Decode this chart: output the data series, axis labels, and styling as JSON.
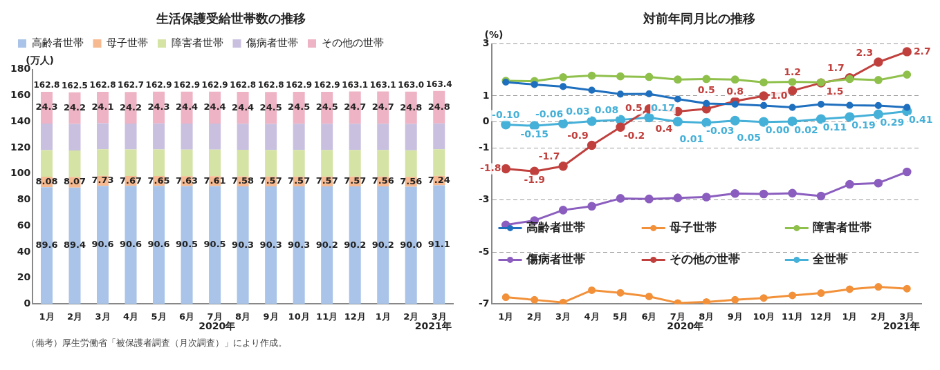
{
  "chart_data": [
    {
      "type": "bar",
      "title": "生活保護受給世帯数の推移",
      "ylabel": "(万人)",
      "categories": [
        "1月",
        "2月",
        "3月",
        "4月",
        "5月",
        "6月",
        "7月",
        "8月",
        "9月",
        "10月",
        "11月",
        "12月",
        "1月",
        "2月",
        "3月"
      ],
      "stacked": true,
      "ylim": [
        0,
        180
      ],
      "yticks": [
        0,
        20,
        40,
        60,
        80,
        100,
        120,
        140,
        160,
        180
      ],
      "grid": false,
      "legend": "top",
      "series": [
        {
          "name": "高齢者世帯",
          "color": "#a9c4e8",
          "values": [
            89.6,
            89.4,
            90.6,
            90.6,
            90.6,
            90.5,
            90.5,
            90.3,
            90.3,
            90.3,
            90.2,
            90.2,
            90.2,
            90.0,
            91.1
          ],
          "value_labels": [
            "89.6",
            "89.4",
            "90.6",
            "90.6",
            "90.6",
            "90.5",
            "90.5",
            "90.3",
            "90.3",
            "90.3",
            "90.2",
            "90.2",
            "90.2",
            "90.0",
            "91.1"
          ]
        },
        {
          "name": "母子世帯",
          "color": "#f7b98f",
          "values": [
            8.08,
            8.07,
            7.73,
            7.67,
            7.65,
            7.63,
            7.61,
            7.58,
            7.57,
            7.57,
            7.57,
            7.57,
            7.56,
            7.56,
            7.24
          ],
          "value_labels": [
            "8.08",
            "8.07",
            "7.73",
            "7.67",
            "7.65",
            "7.63",
            "7.61",
            "7.58",
            "7.57",
            "7.57",
            "7.57",
            "7.57",
            "7.56",
            "7.56",
            "7.24"
          ]
        },
        {
          "name": "障害者世帯",
          "color": "#d5e3a5",
          "values": [
            20.4,
            20.4,
            20.4,
            20.4,
            20.4,
            20.4,
            20.4,
            20.4,
            20.4,
            20.4,
            20.4,
            20.4,
            20.4,
            20.4,
            20.4
          ]
        },
        {
          "name": "傷病者世帯",
          "color": "#c9c0e0",
          "values": [
            20.4,
            20.4,
            20.0,
            19.8,
            20.0,
            20.0,
            20.0,
            20.1,
            20.0,
            20.1,
            20.2,
            20.2,
            20.2,
            20.2,
            19.9
          ]
        },
        {
          "name": "その他の世帯",
          "color": "#eeb3c4",
          "values": [
            24.3,
            24.2,
            24.1,
            24.2,
            24.3,
            24.4,
            24.4,
            24.4,
            24.5,
            24.5,
            24.5,
            24.7,
            24.7,
            24.8,
            24.8
          ],
          "value_labels": [
            "24.3",
            "24.2",
            "24.1",
            "24.2",
            "24.3",
            "24.4",
            "24.4",
            "24.4",
            "24.5",
            "24.5",
            "24.5",
            "24.7",
            "24.7",
            "24.8",
            "24.8"
          ]
        }
      ],
      "totals": [
        "162.8",
        "162.5",
        "162.8",
        "162.7",
        "162.9",
        "162.9",
        "162.9",
        "162.8",
        "162.8",
        "162.9",
        "162.9",
        "163.1",
        "163.1",
        "163.0",
        "163.4"
      ],
      "annotations": [
        "2020年",
        "2021年",
        "（備考）厚生労働省「被保護者調査（月次調査）」により作成。"
      ]
    },
    {
      "type": "line",
      "title": "対前年同月比の推移",
      "ylabel": "(%)",
      "categories": [
        "1月",
        "2月",
        "3月",
        "4月",
        "5月",
        "6月",
        "7月",
        "8月",
        "9月",
        "10月",
        "11月",
        "12月",
        "1月",
        "2月",
        "3月"
      ],
      "ylim": [
        -7,
        3
      ],
      "yticks": [
        3,
        1,
        0,
        -1,
        -3,
        -5,
        -7
      ],
      "grid": "y",
      "legend": "bottom",
      "marker": "circle",
      "line_style": "solid",
      "series": [
        {
          "name": "高齢者世帯",
          "color": "#1f6fbf",
          "values": [
            1.53,
            1.44,
            1.36,
            1.22,
            1.07,
            1.08,
            0.88,
            0.71,
            0.68,
            0.63,
            0.56,
            0.68,
            0.64,
            0.63,
            0.56
          ]
        },
        {
          "name": "母子世帯",
          "color": "#f2913a",
          "values": [
            -6.74,
            -6.84,
            -6.94,
            -6.47,
            -6.57,
            -6.71,
            -6.96,
            -6.92,
            -6.84,
            -6.77,
            -6.67,
            -6.58,
            -6.43,
            -6.34,
            -6.41
          ]
        },
        {
          "name": "障害者世帯",
          "color": "#8fc04b",
          "values": [
            1.58,
            1.57,
            1.72,
            1.78,
            1.75,
            1.73,
            1.63,
            1.65,
            1.63,
            1.52,
            1.54,
            1.52,
            1.65,
            1.61,
            1.82
          ]
        },
        {
          "name": "傷病者世帯",
          "color": "#8a5dbf",
          "values": [
            -3.96,
            -3.79,
            -3.39,
            -3.24,
            -2.94,
            -2.96,
            -2.92,
            -2.89,
            -2.75,
            -2.77,
            -2.74,
            -2.85,
            -2.4,
            -2.35,
            -1.92
          ]
        },
        {
          "name": "その他の世帯",
          "color": "#c0403d",
          "values": [
            -1.8,
            -1.9,
            -1.7,
            -0.9,
            -0.2,
            0.5,
            0.4,
            0.5,
            0.8,
            1.0,
            1.2,
            1.5,
            1.7,
            2.3,
            2.7
          ],
          "value_labels": [
            "-1.8",
            "-1.9",
            "-1.7",
            "-0.9",
            "-0.2",
            "0.5",
            "0.4",
            "0.5",
            "0.8",
            "1.0",
            "1.2",
            "1.5",
            "1.7",
            "2.3",
            "2.7"
          ]
        },
        {
          "name": "全世帯",
          "color": "#45b0d8",
          "values": [
            -0.1,
            -0.15,
            -0.06,
            0.03,
            0.08,
            0.17,
            0.01,
            -0.03,
            0.05,
            0.0,
            0.02,
            0.11,
            0.19,
            0.29,
            0.41
          ],
          "value_labels": [
            "-0.10",
            "-0.15",
            "-0.06",
            "0.03",
            "0.08",
            "0.17",
            "0.01",
            "-0.03",
            "0.05",
            "0.00",
            "0.02",
            "0.11",
            "0.19",
            "0.29",
            "0.41"
          ]
        }
      ],
      "annotations": [
        "2020年",
        "2021年"
      ]
    }
  ]
}
